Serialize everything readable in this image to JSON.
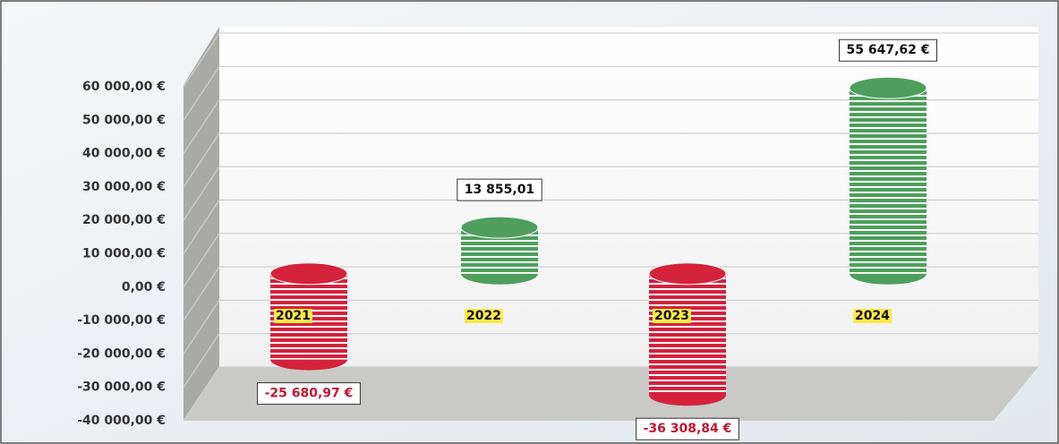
{
  "chart_data": {
    "type": "bar",
    "categories": [
      "2021",
      "2022",
      "2023",
      "2024"
    ],
    "values": [
      -25680.97,
      13855.01,
      -36308.84,
      55647.62
    ],
    "value_labels": [
      "-25 680,97 €",
      "13 855,01",
      "-36 308,84 €",
      "55 647,62 €"
    ],
    "colors": [
      "#d4223c",
      "#4f9e5e",
      "#d4223c",
      "#4f9e5e"
    ],
    "ylim": [
      -40000,
      60000
    ],
    "yticks": [
      {
        "value": 60000,
        "label": "60 000,00 €"
      },
      {
        "value": 50000,
        "label": "50 000,00 €"
      },
      {
        "value": 40000,
        "label": "40 000,00 €"
      },
      {
        "value": 30000,
        "label": "30 000,00 €"
      },
      {
        "value": 20000,
        "label": "20 000,00 €"
      },
      {
        "value": 10000,
        "label": "10 000,00 €"
      },
      {
        "value": 0,
        "label": "0,00 €"
      },
      {
        "value": -10000,
        "label": "-10 000,00 €"
      },
      {
        "value": -20000,
        "label": "-20 000,00 €"
      },
      {
        "value": -30000,
        "label": "-30 000,00 €"
      },
      {
        "value": -40000,
        "label": "-40 000,00 €"
      }
    ],
    "grid": true
  }
}
